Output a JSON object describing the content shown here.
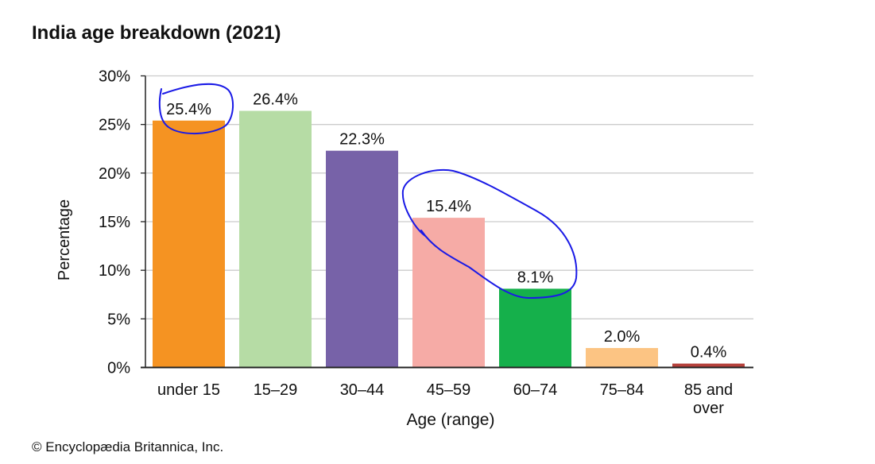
{
  "title": "India age breakdown (2021)",
  "credit": "© Encyclopædia Britannica, Inc.",
  "chart_data": {
    "type": "bar",
    "title": "India age breakdown (2021)",
    "xlabel": "Age (range)",
    "ylabel": "Percentage",
    "ylim": [
      0,
      30
    ],
    "yticks": [
      0,
      5,
      10,
      15,
      20,
      25,
      30
    ],
    "ytick_labels": [
      "0%",
      "5%",
      "10%",
      "15%",
      "20%",
      "25%",
      "30%"
    ],
    "categories": [
      "under 15",
      "15–29",
      "30–44",
      "45–59",
      "60–74",
      "75–84",
      "85 and over"
    ],
    "category_lines": [
      [
        "under 15"
      ],
      [
        "15–29"
      ],
      [
        "30–44"
      ],
      [
        "45–59"
      ],
      [
        "60–74"
      ],
      [
        "75–84"
      ],
      [
        "85 and",
        "over"
      ]
    ],
    "values": [
      25.4,
      26.4,
      22.3,
      15.4,
      8.1,
      2.0,
      0.4
    ],
    "data_labels": [
      "25.4%",
      "26.4%",
      "22.3%",
      "15.4%",
      "8.1%",
      "2.0%",
      "0.4%"
    ],
    "colors": [
      "#f59322",
      "#b6dca5",
      "#7762a8",
      "#f6aba6",
      "#15b04b",
      "#fcc483",
      "#b6423c"
    ],
    "grid": true,
    "grid_color": "#cccccc",
    "annotation_color": "#1a1ae6"
  }
}
